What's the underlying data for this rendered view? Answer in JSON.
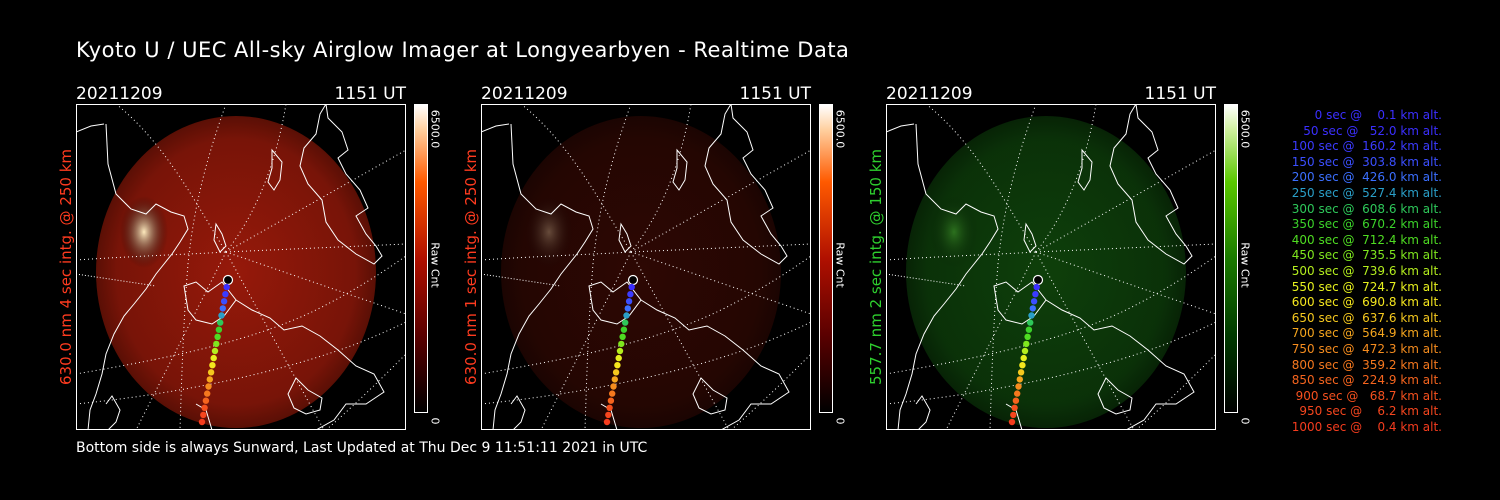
{
  "title": "Kyoto U / UEC All-sky Airglow Imager at Longyearbyen - Realtime Data",
  "footer": "Bottom side is always Sunward, Last Updated at Thu Dec  9 11:51:11 2021 in UTC",
  "panels": [
    {
      "date": "20211209",
      "time": "1151 UT",
      "ylabel": "630.0 nm  4 sec intg. @ 250 km",
      "ylabel_color": "#ff3b1f",
      "cbar_max": "6500.0",
      "cbar_min": "0",
      "cbar_label": "Raw Cnt",
      "colormap": "red",
      "intensity": 1.0
    },
    {
      "date": "20211209",
      "time": "1151 UT",
      "ylabel": "630.0 nm  1 sec intg. @ 250 km",
      "ylabel_color": "#ff3b1f",
      "cbar_max": "6500.0",
      "cbar_min": "0",
      "cbar_label": "Raw Cnt",
      "colormap": "red",
      "intensity": 0.3
    },
    {
      "date": "20211209",
      "time": "1151 UT",
      "ylabel": "557.7 nm  2 sec intg. @ 150 km",
      "ylabel_color": "#2ecf2e",
      "cbar_max": "6500.0",
      "cbar_min": "0",
      "cbar_label": "Raw Cnt",
      "colormap": "green",
      "intensity": 0.7
    }
  ],
  "legend": [
    {
      "text": "   0 sec @    0.1 km alt.",
      "color": "#3b2fff"
    },
    {
      "text": "  50 sec @   52.0 km alt.",
      "color": "#3b2fff"
    },
    {
      "text": " 100 sec @  160.2 km alt.",
      "color": "#3b3bff"
    },
    {
      "text": " 150 sec @  303.8 km alt.",
      "color": "#3b4fff"
    },
    {
      "text": " 200 sec @  426.0 km alt.",
      "color": "#3b6fff"
    },
    {
      "text": " 250 sec @  527.4 km alt.",
      "color": "#2a9fc8"
    },
    {
      "text": " 300 sec @  608.6 km alt.",
      "color": "#2ec85a"
    },
    {
      "text": " 350 sec @  670.2 km alt.",
      "color": "#3bd22a"
    },
    {
      "text": " 400 sec @  712.4 km alt.",
      "color": "#4fdc22"
    },
    {
      "text": " 450 sec @  735.5 km alt.",
      "color": "#7fe61e"
    },
    {
      "text": " 500 sec @  739.6 km alt.",
      "color": "#b4ee1e"
    },
    {
      "text": " 550 sec @  724.7 km alt.",
      "color": "#e6f01e"
    },
    {
      "text": " 600 sec @  690.8 km alt.",
      "color": "#f5e61e"
    },
    {
      "text": " 650 sec @  637.6 km alt.",
      "color": "#f5c81e"
    },
    {
      "text": " 700 sec @  564.9 km alt.",
      "color": "#f5a51e"
    },
    {
      "text": " 750 sec @  472.3 km alt.",
      "color": "#f58c1e"
    },
    {
      "text": " 800 sec @  359.2 km alt.",
      "color": "#f5781e"
    },
    {
      "text": " 850 sec @  224.9 km alt.",
      "color": "#f5641e"
    },
    {
      "text": " 900 sec @   68.7 km alt.",
      "color": "#f5501e"
    },
    {
      "text": " 950 sec @    6.2 km alt.",
      "color": "#f5461e"
    },
    {
      "text": "1000 sec @    0.4 km alt.",
      "color": "#f53c1e"
    }
  ]
}
